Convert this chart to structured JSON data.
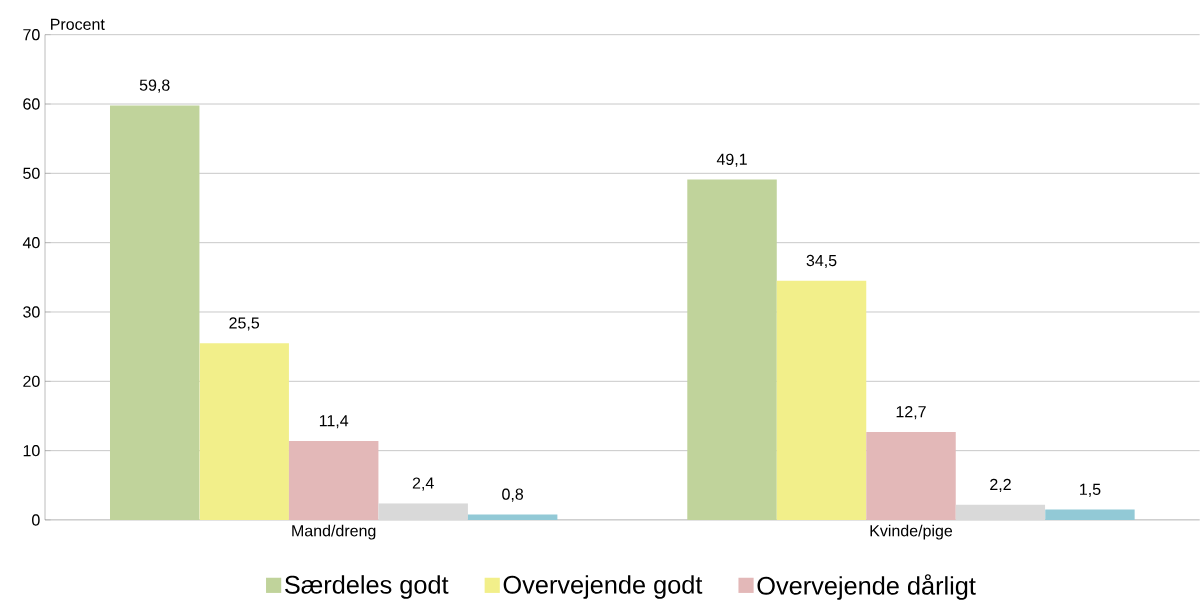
{
  "chart_data": {
    "type": "bar",
    "ylabel": "Procent",
    "categories": [
      "Mand/dreng",
      "Kvinde/pige"
    ],
    "series": [
      {
        "name": "Særdeles godt",
        "color": "#c0d39b",
        "values": [
          59.8,
          49.1
        ],
        "value_labels": [
          "59,8",
          "49,1"
        ]
      },
      {
        "name": "Overvejende godt",
        "color": "#f2ef8a",
        "values": [
          25.5,
          34.5
        ],
        "value_labels": [
          "25,5",
          "34,5"
        ]
      },
      {
        "name": "Overvejende dårligt",
        "color": "#e3b8b8",
        "values": [
          11.4,
          12.7
        ],
        "value_labels": [
          "11,4",
          "12,7"
        ]
      },
      {
        "color": "#d9d9d9",
        "values": [
          2.4,
          2.2
        ],
        "value_labels": [
          "2,4",
          "2,2"
        ]
      },
      {
        "color": "#92c9d6",
        "values": [
          0.8,
          1.5
        ],
        "value_labels": [
          "0,8",
          "1,5"
        ]
      }
    ],
    "ylim": [
      0,
      70
    ],
    "yticks": [
      0,
      10,
      20,
      30,
      40,
      50,
      60,
      70
    ],
    "grid": "y",
    "legend": "bottom"
  }
}
